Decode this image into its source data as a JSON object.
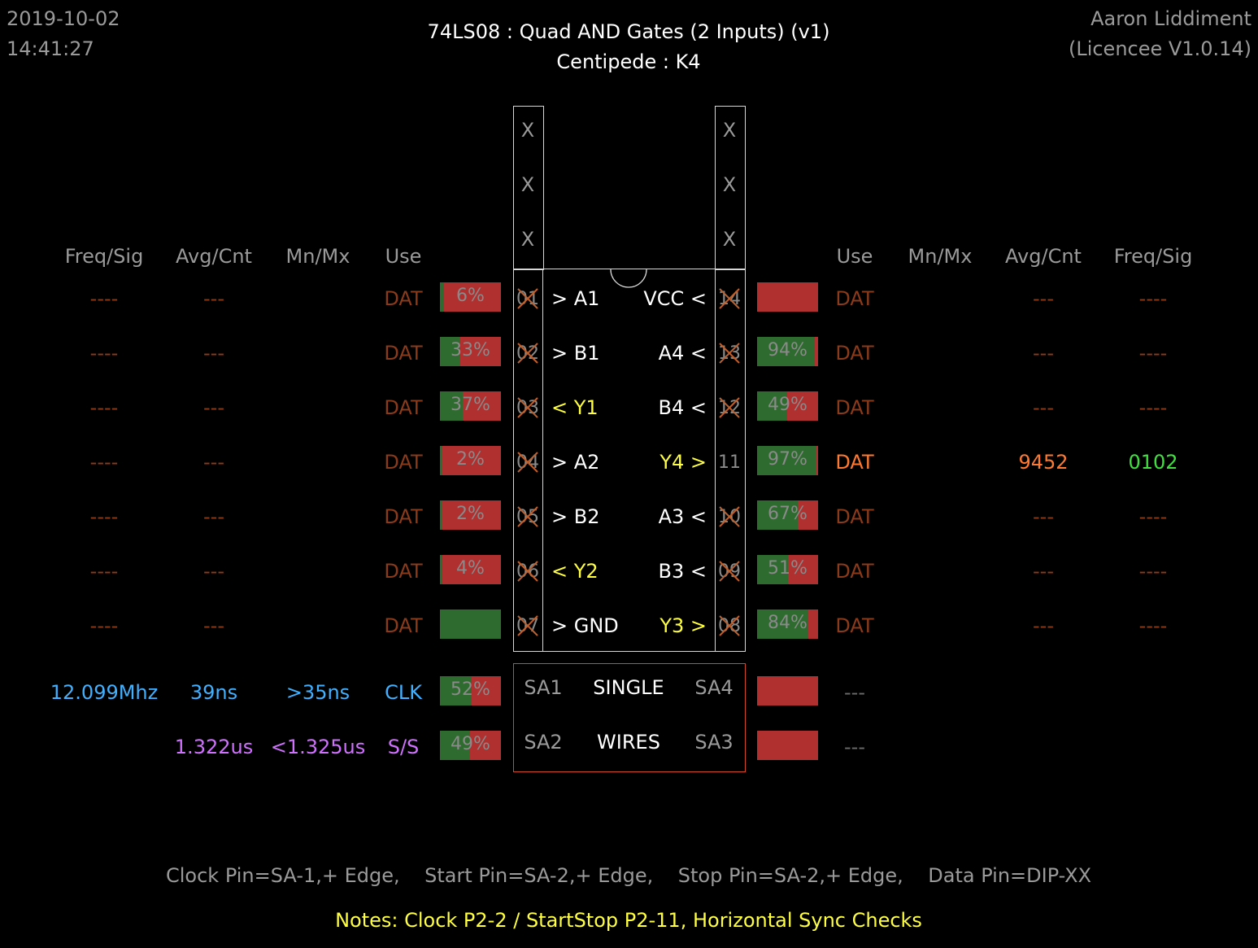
{
  "header": {
    "date": "2019-10-02",
    "time": "14:41:27",
    "title": "74LS08  :  Quad AND Gates (2 Inputs) (v1)",
    "subtitle": "Centipede : K4",
    "user": "Aaron Liddiment",
    "licence": "(Licencee V1.0.14)"
  },
  "columns": {
    "left": {
      "freq": "Freq/Sig",
      "avg": "Avg/Cnt",
      "mnmx": "Mn/Mx",
      "use": "Use"
    },
    "right": {
      "use": "Use",
      "mnmx": "Mn/Mx",
      "avg": "Avg/Cnt",
      "freq": "Freq/Sig"
    }
  },
  "top_pins": {
    "left": [
      "X",
      "X",
      "X"
    ],
    "right": [
      "X",
      "X",
      "X"
    ]
  },
  "left_rows": [
    {
      "pin": "01",
      "label": "> A1",
      "label_color": "#ffffff",
      "use": "DAT",
      "freq": "----",
      "avg": "---",
      "bar_pct": "6%",
      "green": 0.06,
      "crossed": true
    },
    {
      "pin": "02",
      "label": "> B1",
      "label_color": "#ffffff",
      "use": "DAT",
      "freq": "----",
      "avg": "---",
      "bar_pct": "33%",
      "green": 0.33,
      "crossed": true
    },
    {
      "pin": "03",
      "label": "< Y1",
      "label_color": "#ffff40",
      "use": "DAT",
      "freq": "----",
      "avg": "---",
      "bar_pct": "37%",
      "green": 0.37,
      "crossed": true
    },
    {
      "pin": "04",
      "label": "> A2",
      "label_color": "#ffffff",
      "use": "DAT",
      "freq": "----",
      "avg": "---",
      "bar_pct": "2%",
      "green": 0.02,
      "crossed": true
    },
    {
      "pin": "05",
      "label": "> B2",
      "label_color": "#ffffff",
      "use": "DAT",
      "freq": "----",
      "avg": "---",
      "bar_pct": "2%",
      "green": 0.02,
      "crossed": true
    },
    {
      "pin": "06",
      "label": "< Y2",
      "label_color": "#ffff40",
      "use": "DAT",
      "freq": "----",
      "avg": "---",
      "bar_pct": "4%",
      "green": 0.04,
      "crossed": true
    },
    {
      "pin": "07",
      "label": "> GND",
      "label_color": "#ffffff",
      "use": "DAT",
      "freq": "----",
      "avg": "---",
      "bar_pct": "",
      "green": 1.0,
      "crossed": true
    }
  ],
  "right_rows": [
    {
      "pin": "14",
      "label": "VCC <",
      "label_color": "#ffffff",
      "use": "DAT",
      "avg": "---",
      "freq": "----",
      "bar_pct": "",
      "green": 0.0,
      "crossed": true,
      "active": false
    },
    {
      "pin": "13",
      "label": "A4 <",
      "label_color": "#ffffff",
      "use": "DAT",
      "avg": "---",
      "freq": "----",
      "bar_pct": "94%",
      "green": 0.94,
      "crossed": true,
      "active": false
    },
    {
      "pin": "12",
      "label": "B4 <",
      "label_color": "#ffffff",
      "use": "DAT",
      "avg": "---",
      "freq": "----",
      "bar_pct": "49%",
      "green": 0.49,
      "crossed": true,
      "active": false
    },
    {
      "pin": "11",
      "label": "Y4 >",
      "label_color": "#ffff40",
      "use": "DAT",
      "avg": "9452",
      "freq": "0102",
      "bar_pct": "97%",
      "green": 0.97,
      "crossed": false,
      "active": true
    },
    {
      "pin": "10",
      "label": "A3 <",
      "label_color": "#ffffff",
      "use": "DAT",
      "avg": "---",
      "freq": "----",
      "bar_pct": "67%",
      "green": 0.67,
      "crossed": true,
      "active": false
    },
    {
      "pin": "09",
      "label": "B3 <",
      "label_color": "#ffffff",
      "use": "DAT",
      "avg": "---",
      "freq": "----",
      "bar_pct": "51%",
      "green": 0.51,
      "crossed": true,
      "active": false
    },
    {
      "pin": "08",
      "label": "Y3 >",
      "label_color": "#ffff40",
      "use": "DAT",
      "avg": "---",
      "freq": "----",
      "bar_pct": "84%",
      "green": 0.84,
      "crossed": true,
      "active": false
    }
  ],
  "clk": {
    "freq": "12.099Mhz",
    "avg": "39ns",
    "mnmx": ">35ns",
    "use": "CLK",
    "bar_pct": "52%",
    "green": 0.52,
    "right_text": "---"
  },
  "ss": {
    "avg": "1.322us",
    "mnmx": "<1.325us",
    "use": "S/S",
    "bar_pct": "49%",
    "green": 0.49,
    "right_text": "---"
  },
  "sa_box": {
    "sa1": "SA1",
    "sa2": "SA2",
    "sa3": "SA3",
    "sa4": "SA4",
    "mode1": "SINGLE",
    "mode2": "WIRES"
  },
  "footer": {
    "pins": "Clock Pin=SA-1,+ Edge,    Start Pin=SA-2,+ Edge,    Stop Pin=SA-2,+ Edge,    Data Pin=DIP-XX",
    "notes": "Notes:  Clock P2-2 / StartStop P2-11, Horizontal Sync Checks"
  },
  "colors": {
    "orange_dim": "#8b3a1a",
    "orange_bright": "#ff7a30",
    "green_bright": "#40e040",
    "blue": "#40b0ff",
    "purple": "#d070ff",
    "yellow": "#ffff40",
    "bar_green": "#2e6b2e",
    "bar_red": "#b03030",
    "sa_border": "#d04a2a"
  }
}
